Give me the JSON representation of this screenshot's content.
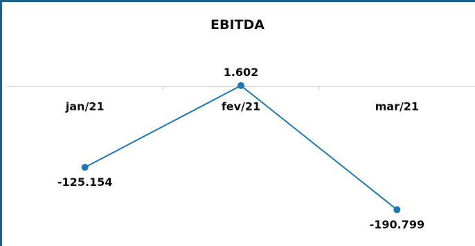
{
  "chart_data": {
    "type": "line",
    "title": "EBITDA",
    "xlabel": "",
    "ylabel": "",
    "categories": [
      "jan/21",
      "fev/21",
      "mar/21"
    ],
    "series": [
      {
        "values": [
          -125154,
          1602,
          -190799
        ],
        "labels": [
          "-125.154",
          "1.602",
          "-190.799"
        ]
      }
    ],
    "ylim": [
      -230000,
      70000
    ],
    "grid": false,
    "legend": "none",
    "colors": {
      "line": "#1f77b4",
      "axis": "#d9d9d9",
      "frame": "#1f5f8b",
      "text": "#111111"
    }
  }
}
